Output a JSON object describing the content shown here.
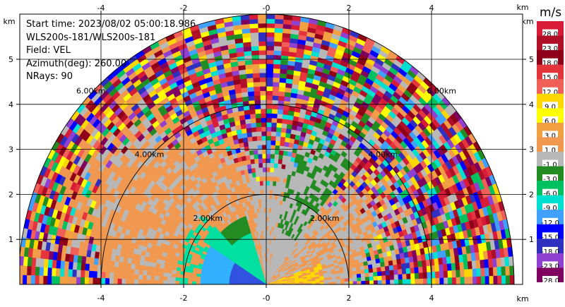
{
  "info": {
    "start_time": "Start time: 2023/08/02 05:00:18.986",
    "instrument": "WLS200s-181/WLS200s-181",
    "field": "Field: VEL",
    "azimuth": "Azimuth(deg): 260.00",
    "nrays": "NRays: 90"
  },
  "colorbar": {
    "unit": "m/s",
    "labels": [
      "28.0",
      "23.0",
      "18.0",
      "15.0",
      "12.0",
      "9.0",
      "6.0",
      "3.0",
      "1.0",
      "-1.0",
      "-3.0",
      "-6.0",
      "-9.0",
      "-12.0",
      "-15.0",
      "-18.0",
      "-23.0",
      "-28.0"
    ],
    "colors": [
      "#d81c38",
      "#b00f28",
      "#8e0018",
      "#e4343c",
      "#f06058",
      "#ffd700",
      "#ffff00",
      "#f0a040",
      "#f09850",
      "#b8b8b8",
      "#228b22",
      "#00c060",
      "#00e0d0",
      "#40a0ff",
      "#0000ff",
      "#3030c0",
      "#9040d0",
      "#800060"
    ]
  },
  "chart_data": {
    "type": "heatmap",
    "field": "VEL",
    "units": "m/s",
    "x_unit_label": "km",
    "y_unit_label": "km",
    "xlim": [
      -6.0,
      6.0
    ],
    "ylim": [
      0,
      5.9
    ],
    "x_ticks": [
      -4,
      -2,
      0,
      2,
      4
    ],
    "y_ticks": [
      1,
      2,
      3,
      4,
      5
    ],
    "x_tick_labels": [
      "-4",
      "-2",
      "-0",
      "2",
      "4"
    ],
    "y_tick_labels": [
      "1",
      "2",
      "3",
      "4",
      "5"
    ],
    "range_rings_km": [
      2,
      4,
      6
    ],
    "range_ring_labels": [
      "2.00km",
      "4.00km",
      "6.00km"
    ],
    "max_range_km": 6.0,
    "grid": true,
    "nrays": 90
  }
}
